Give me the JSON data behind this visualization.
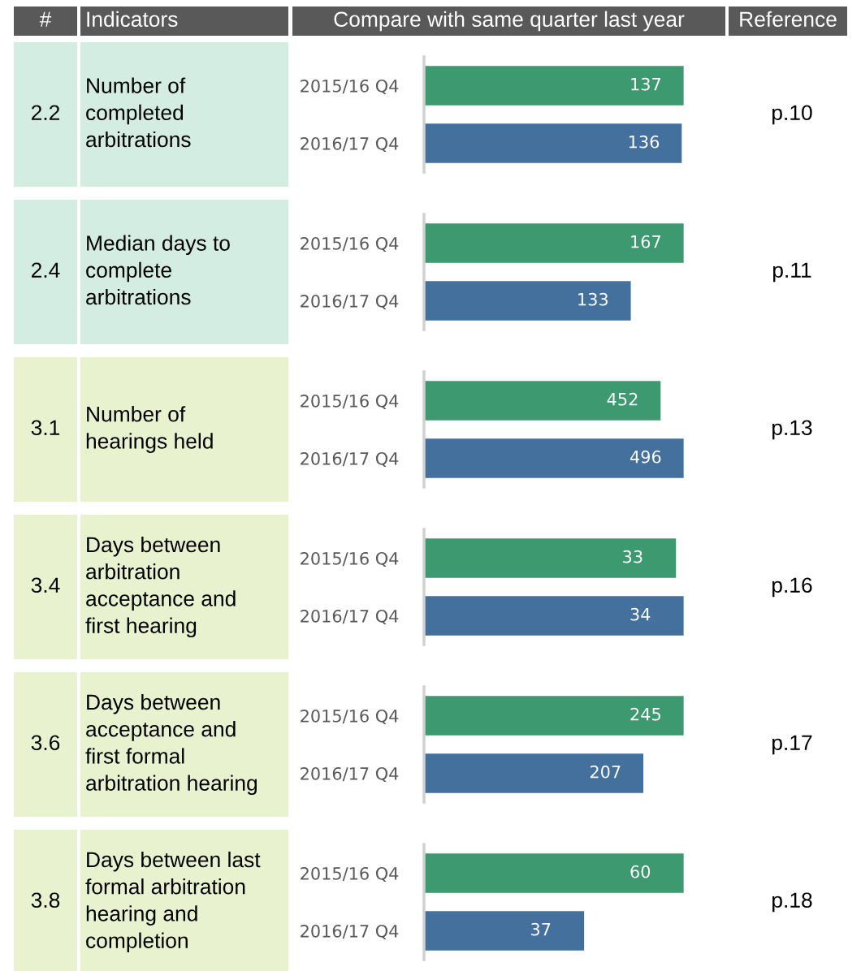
{
  "chart_data": [
    {
      "type": "other",
      "annotations": [
        "#",
        "Indicators",
        "Compare with same quarter last year",
        "Reference"
      ]
    },
    {
      "type": "bar",
      "orientation": "horizontal",
      "title": "Number of\ncompleted\narbitrations",
      "annotations": [
        "2.2",
        "p.10"
      ],
      "categories": [
        "2015/16 Q4",
        "2016/17 Q4"
      ],
      "values": [
        137,
        136
      ],
      "colors": [
        "#3d9970",
        "#44709e"
      ],
      "data_labels": true
    },
    {
      "type": "bar",
      "orientation": "horizontal",
      "title": "Median days to\ncomplete\narbitrations",
      "annotations": [
        "2.4",
        "p.11"
      ],
      "categories": [
        "2015/16 Q4",
        "2016/17 Q4"
      ],
      "values": [
        167,
        133
      ],
      "colors": [
        "#3d9970",
        "#44709e"
      ],
      "data_labels": true
    },
    {
      "type": "bar",
      "orientation": "horizontal",
      "title": "Number of\nhearings held",
      "annotations": [
        "3.1",
        "p.13"
      ],
      "categories": [
        "2015/16 Q4",
        "2016/17 Q4"
      ],
      "values": [
        452,
        496
      ],
      "colors": [
        "#3d9970",
        "#44709e"
      ],
      "data_labels": true
    },
    {
      "type": "bar",
      "orientation": "horizontal",
      "title": "Days between\narbitration\nacceptance and\nfirst hearing",
      "annotations": [
        "3.4",
        "p.16"
      ],
      "categories": [
        "2015/16 Q4",
        "2016/17 Q4"
      ],
      "values": [
        33,
        34
      ],
      "colors": [
        "#3d9970",
        "#44709e"
      ],
      "data_labels": true
    },
    {
      "type": "bar",
      "orientation": "horizontal",
      "title": "Days between\nacceptance and\nfirst formal\narbitration hearing",
      "annotations": [
        "3.6",
        "p.17"
      ],
      "categories": [
        "2015/16 Q4",
        "2016/17 Q4"
      ],
      "values": [
        245,
        207
      ],
      "colors": [
        "#3d9970",
        "#44709e"
      ],
      "data_labels": true
    },
    {
      "type": "bar",
      "orientation": "horizontal",
      "title": "Days between last\nformal arbitration\nhearing and\ncompletion",
      "annotations": [
        "3.8",
        "p.18"
      ],
      "categories": [
        "2015/16 Q4",
        "2016/17 Q4"
      ],
      "values": [
        60,
        37
      ],
      "colors": [
        "#3d9970",
        "#44709e"
      ],
      "data_labels": true
    }
  ]
}
